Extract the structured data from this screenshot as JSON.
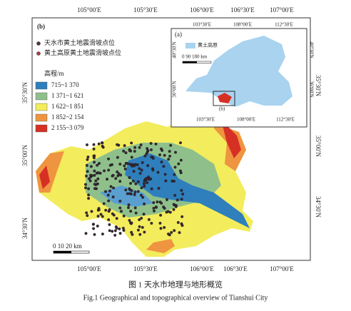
{
  "panel_label": "(b)",
  "top_axis": [
    "105°00′E",
    "105°30′E",
    "106°00′E",
    "106°30′E",
    "107°00′E"
  ],
  "bottom_axis": [
    "105°00′E",
    "105°30′E",
    "106°00′E",
    "106°30′E",
    "107°00′E"
  ],
  "left_axis": [
    "35°30′N",
    "35°00′N",
    "34°30′N"
  ],
  "right_axis": [
    "35°30′N",
    "35°00′N",
    "34°30′N"
  ],
  "point_legend": [
    "天水市黄土地震滑坡点位",
    "黄土高原黄土地震滑坡点位"
  ],
  "elevation_legend": {
    "title": "高程/m",
    "classes": [
      {
        "label": "715~1 370",
        "color": "#2f7fbd"
      },
      {
        "label": "1 371~1 621",
        "color": "#8fc08c"
      },
      {
        "label": "1 622~1 851",
        "color": "#f3ec5c"
      },
      {
        "label": "1 852~2 154",
        "color": "#ef9440"
      },
      {
        "label": "2 155~3 079",
        "color": "#d63024"
      }
    ]
  },
  "scale_bar": "0  10  20 km",
  "inset": {
    "label": "(a)",
    "legend": "黄土高原",
    "scale_bar": "0  90 180 km",
    "marker": "(b)",
    "top_axis": [
      "103°30′E",
      "108°00′E",
      "112°30′E"
    ],
    "bottom_axis": [
      "103°30′E",
      "108°00′E",
      "112°30′E"
    ],
    "left_axis": [
      "40°30′N",
      "36°00′N"
    ],
    "right_axis": [
      "40°30′N",
      "36°00′N"
    ]
  },
  "caption_cn": "图 1   天水市地理与地形概览",
  "caption_en": "Fig.1   Geographical and topographical overview of Tianshui City"
}
